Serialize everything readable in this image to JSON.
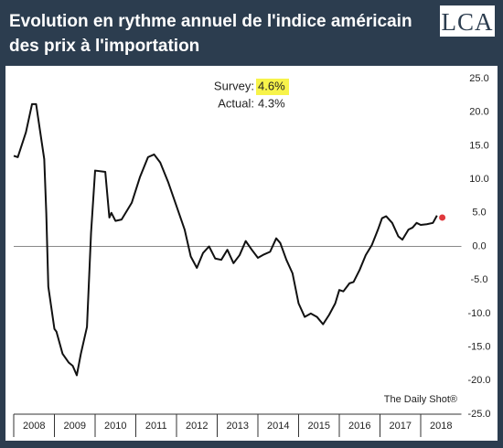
{
  "chart_data": {
    "type": "line",
    "title": "Evolution en rythme annuel de l'indice américain des prix à l'importation",
    "logo": "LCA",
    "source": "The Daily Shot®",
    "annotations": [
      {
        "label": "Survey:",
        "value_label": "4.6%",
        "highlight": "#f7f34a"
      },
      {
        "label": "Actual:",
        "value_label": "4.3%"
      }
    ],
    "x": [
      2008.0,
      2008.1,
      2008.3,
      2008.45,
      2008.55,
      2008.75,
      2008.8,
      2008.85,
      2009.0,
      2009.05,
      2009.2,
      2009.35,
      2009.45,
      2009.55,
      2009.65,
      2009.8,
      2009.9,
      2010.0,
      2010.25,
      2010.35,
      2010.4,
      2010.5,
      2010.65,
      2010.8,
      2010.9,
      2011.1,
      2011.3,
      2011.45,
      2011.6,
      2011.8,
      2012.0,
      2012.2,
      2012.35,
      2012.5,
      2012.65,
      2012.8,
      2012.95,
      2013.1,
      2013.25,
      2013.4,
      2013.55,
      2013.7,
      2013.85,
      2014.0,
      2014.15,
      2014.3,
      2014.45,
      2014.55,
      2014.7,
      2014.85,
      2015.0,
      2015.15,
      2015.3,
      2015.45,
      2015.6,
      2015.75,
      2015.9,
      2016.0,
      2016.1,
      2016.25,
      2016.35,
      2016.5,
      2016.65,
      2016.8,
      2016.95,
      2017.05,
      2017.15,
      2017.3,
      2017.45,
      2017.55,
      2017.7,
      2017.8,
      2017.9,
      2018.0,
      2018.15,
      2018.3,
      2018.4
    ],
    "series": [
      {
        "color": "#111111",
        "values": [
          13.5,
          13.3,
          17,
          21.2,
          21.2,
          13,
          5,
          -6,
          -12.3,
          -12.7,
          -16,
          -17.3,
          -17.8,
          -19.2,
          -16,
          -12,
          2,
          11.3,
          11.1,
          4.3,
          5,
          3.8,
          4,
          5.5,
          6.5,
          10.3,
          13.3,
          13.7,
          12.5,
          9.5,
          6,
          2.5,
          -1.5,
          -3.2,
          -1,
          0,
          -1.8,
          -2,
          -0.5,
          -2.5,
          -1.3,
          0.8,
          -0.5,
          -1.7,
          -1.2,
          -0.8,
          1.2,
          0.5,
          -2,
          -4,
          -8.5,
          -10.5,
          -10,
          -10.5,
          -11.6,
          -10.2,
          -8.5,
          -6.5,
          -6.7,
          -5.5,
          -5.3,
          -3.5,
          -1.3,
          0.2,
          2.5,
          4.2,
          4.5,
          3.5,
          1.5,
          1,
          2.5,
          2.8,
          3.5,
          3.2,
          3.3,
          3.5,
          4.6
        ]
      }
    ],
    "highlight_point": {
      "x": 2018.53,
      "value": 4.3,
      "color": "#e0383c"
    },
    "xlim": [
      2008,
      2019
    ],
    "xticks": [
      {
        "value": 2008,
        "label": "2008"
      },
      {
        "value": 2009,
        "label": "2009"
      },
      {
        "value": 2010,
        "label": "2010"
      },
      {
        "value": 2011,
        "label": "2011"
      },
      {
        "value": 2012,
        "label": "2012"
      },
      {
        "value": 2013,
        "label": "2013"
      },
      {
        "value": 2014,
        "label": "2014"
      },
      {
        "value": 2015,
        "label": "2015"
      },
      {
        "value": 2016,
        "label": "2016"
      },
      {
        "value": 2017,
        "label": "2017"
      },
      {
        "value": 2018,
        "label": "2018"
      }
    ],
    "ylim": [
      -25,
      25
    ],
    "yticks": [
      {
        "value": 25,
        "label": "25.0"
      },
      {
        "value": 20,
        "label": "20.0"
      },
      {
        "value": 15,
        "label": "15.0"
      },
      {
        "value": 10,
        "label": "10.0"
      },
      {
        "value": 5,
        "label": "5.0"
      },
      {
        "value": 0,
        "label": "0.0"
      },
      {
        "value": -5,
        "label": "-5.0"
      },
      {
        "value": -10,
        "label": "-10.0"
      },
      {
        "value": -15,
        "label": "-15.0"
      },
      {
        "value": -20,
        "label": "-20.0"
      },
      {
        "value": -25,
        "label": "-25.0"
      }
    ],
    "zero_line": true,
    "grid": false
  }
}
